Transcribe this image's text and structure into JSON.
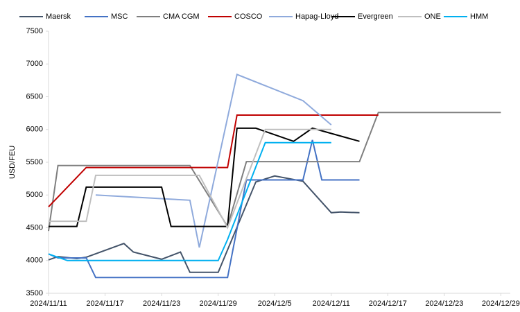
{
  "chart_data": {
    "type": "line",
    "y_label": "USD/FEU",
    "ylim": [
      3500,
      7500
    ],
    "yticks": [
      3500,
      4000,
      4500,
      5000,
      5500,
      6000,
      6500,
      7000,
      7500
    ],
    "xlim": [
      "2024/11/11",
      "2024/12/30"
    ],
    "xticks": [
      "2024/11/11",
      "2024/11/17",
      "2024/11/23",
      "2024/11/29",
      "2024/12/5",
      "2024/12/11",
      "2024/12/17",
      "2024/12/23",
      "2024/12/29"
    ],
    "legend": "top",
    "series": [
      {
        "name": "Maersk",
        "color": "#44546a",
        "x": [
          "2024/11/11",
          "2024/11/12",
          "2024/11/14",
          "2024/11/15",
          "2024/11/19",
          "2024/11/20",
          "2024/11/23",
          "2024/11/25",
          "2024/11/26",
          "2024/11/29",
          "2024/12/3",
          "2024/12/5",
          "2024/12/8",
          "2024/12/11",
          "2024/12/12",
          "2024/12/14"
        ],
        "values": [
          4010,
          4060,
          4030,
          4050,
          4260,
          4130,
          4020,
          4130,
          3820,
          3820,
          5200,
          5290,
          5210,
          4730,
          4740,
          4730
        ]
      },
      {
        "name": "MSC",
        "color": "#4472c4",
        "x": [
          "2024/11/11",
          "2024/11/12",
          "2024/11/15",
          "2024/11/16",
          "2024/11/30",
          "2024/12/2",
          "2024/12/8",
          "2024/12/9",
          "2024/12/10",
          "2024/12/14"
        ],
        "values": [
          4100,
          4040,
          4040,
          3740,
          3740,
          5230,
          5230,
          5840,
          5230,
          5230
        ]
      },
      {
        "name": "CMA CGM",
        "color": "#7f7f7f",
        "x": [
          "2024/11/11",
          "2024/11/12",
          "2024/11/26",
          "2024/11/30",
          "2024/12/2",
          "2024/12/14",
          "2024/12/16",
          "2024/12/29"
        ],
        "values": [
          4450,
          5450,
          5450,
          4520,
          5510,
          5510,
          6260,
          6260
        ]
      },
      {
        "name": "COSCO",
        "color": "#c00000",
        "x": [
          "2024/11/11",
          "2024/11/15",
          "2024/11/30",
          "2024/12/1",
          "2024/12/16"
        ],
        "values": [
          4820,
          5420,
          5420,
          6220,
          6220
        ]
      },
      {
        "name": "Hapag-Lloyd",
        "color": "#8faadc",
        "x": [
          "2024/11/16",
          "2024/11/26",
          "2024/11/27",
          "2024/12/1",
          "2024/12/8",
          "2024/12/11"
        ],
        "values": [
          5000,
          4920,
          4200,
          6840,
          6440,
          6070
        ]
      },
      {
        "name": "Evergreen",
        "color": "#000000",
        "x": [
          "2024/11/11",
          "2024/11/14",
          "2024/11/15",
          "2024/11/23",
          "2024/11/24",
          "2024/11/30",
          "2024/12/1",
          "2024/12/3",
          "2024/12/7",
          "2024/12/9",
          "2024/12/14"
        ],
        "values": [
          4520,
          4520,
          5120,
          5120,
          4520,
          4520,
          6020,
          6020,
          5820,
          6020,
          5820
        ]
      },
      {
        "name": "ONE",
        "color": "#bfbfbf",
        "x": [
          "2024/11/11",
          "2024/11/15",
          "2024/11/16",
          "2024/11/27",
          "2024/11/30",
          "2024/12/4",
          "2024/12/11"
        ],
        "values": [
          4600,
          4600,
          5300,
          5300,
          4500,
          6000,
          6000
        ]
      },
      {
        "name": "HMM",
        "color": "#00b0f0",
        "x": [
          "2024/11/11",
          "2024/11/13",
          "2024/11/29",
          "2024/11/30",
          "2024/12/4",
          "2024/12/11"
        ],
        "values": [
          4100,
          4000,
          4000,
          4320,
          5800,
          5800
        ]
      }
    ]
  }
}
